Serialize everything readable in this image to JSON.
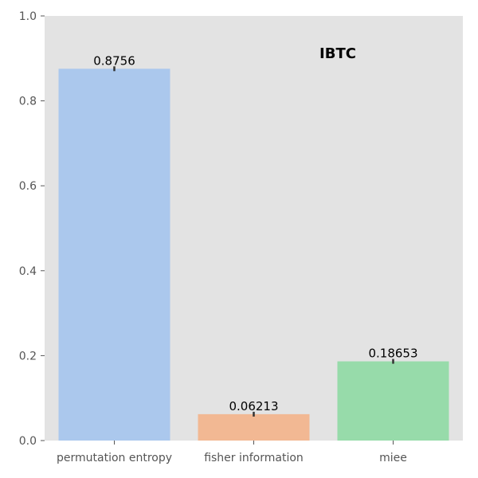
{
  "chart_data": {
    "type": "bar",
    "title": "IBTC",
    "categories": [
      "permutation entropy",
      "fisher information",
      "miee"
    ],
    "values": [
      0.8756,
      0.06213,
      0.18653
    ],
    "value_labels": [
      "0.8756",
      "0.06213",
      "0.18653"
    ],
    "bar_colors": [
      "#abc8ed",
      "#f2b893",
      "#97dbaa"
    ],
    "ylim": [
      0,
      1.0
    ],
    "yticks": [
      0.0,
      0.2,
      0.4,
      0.6,
      0.8,
      1.0
    ],
    "ytick_labels": [
      "0.0",
      "0.2",
      "0.4",
      "0.6",
      "0.8",
      "1.0"
    ],
    "xlabel": "",
    "ylabel": "",
    "grid": false,
    "background": "#e3e3e3"
  }
}
